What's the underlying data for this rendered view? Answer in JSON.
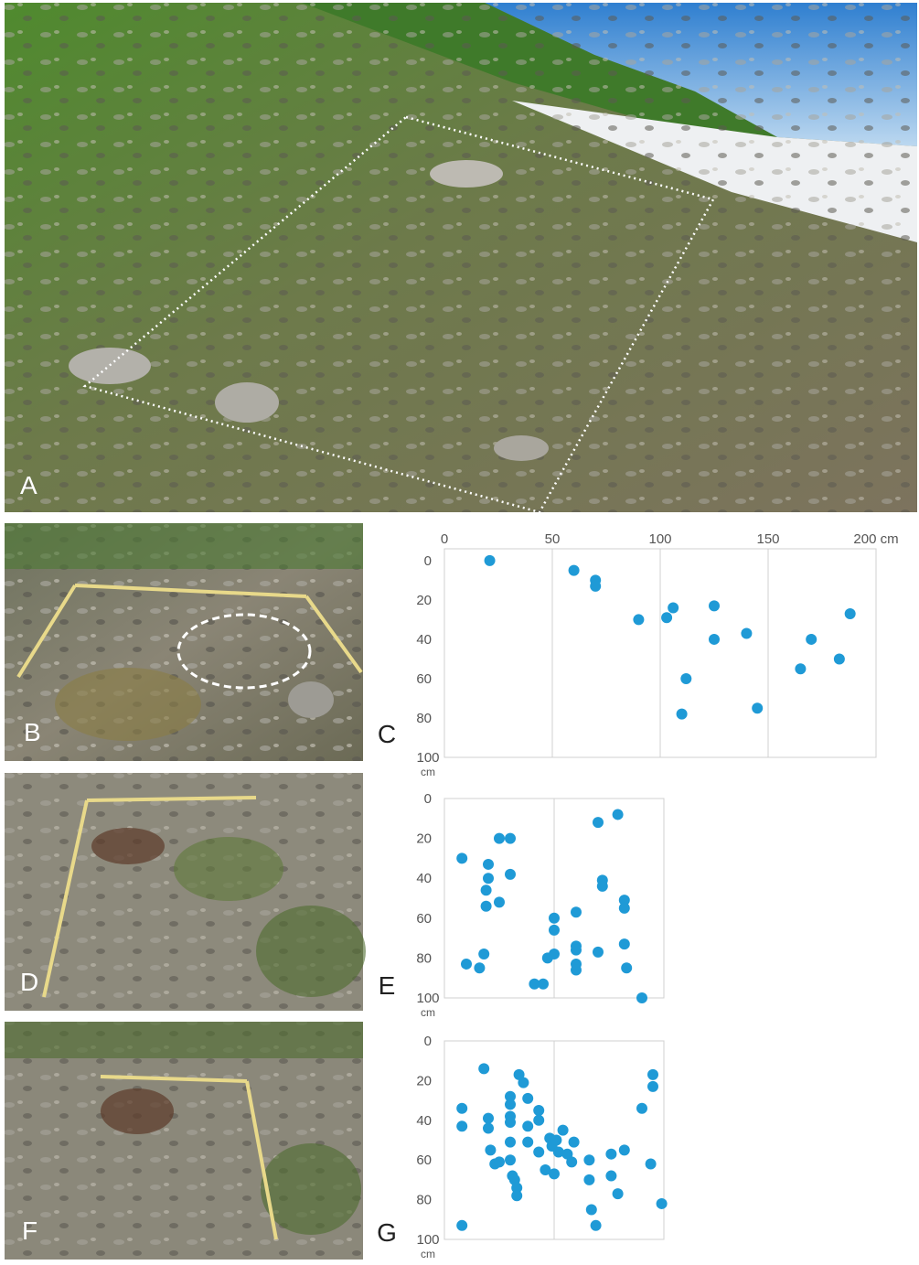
{
  "photo_labels": [
    "A",
    "B",
    "D",
    "F"
  ],
  "chart_data": [
    {
      "type": "scatter",
      "panel_label": "C",
      "color": "#1f9ad6",
      "x": [
        21,
        60,
        70,
        70,
        90,
        103,
        106,
        125,
        125,
        140,
        112,
        110,
        145,
        165,
        170,
        183,
        188
      ],
      "values": [
        0,
        5,
        10,
        13,
        30,
        29,
        24,
        23,
        40,
        37,
        60,
        78,
        75,
        55,
        40,
        50,
        27
      ],
      "xlim": [
        0,
        200
      ],
      "ylim": [
        -6,
        100
      ],
      "y_inverted": true,
      "xticks": [
        0,
        50,
        100,
        150,
        {
          "value": 200,
          "label": "200 cm"
        }
      ],
      "xgrid": [
        50,
        100,
        150
      ],
      "yticks": [
        0,
        20,
        40,
        60,
        80,
        {
          "value": 100,
          "label": "100 cm"
        }
      ]
    },
    {
      "type": "scatter",
      "panel_label": "E",
      "color": "#1f9ad6",
      "x": [
        8,
        10,
        16,
        18,
        20,
        20,
        19,
        19,
        25,
        30,
        30,
        25,
        41,
        45,
        47,
        50,
        50,
        50,
        60,
        60,
        60,
        60,
        60,
        70,
        79,
        72,
        72,
        70,
        82,
        82,
        82,
        83,
        90
      ],
      "values": [
        30,
        83,
        85,
        78,
        33,
        40,
        46,
        54,
        20,
        20,
        38,
        52,
        93,
        93,
        80,
        60,
        66,
        78,
        57,
        74,
        76,
        83,
        86,
        12,
        8,
        41,
        44,
        77,
        51,
        55,
        73,
        85,
        100
      ],
      "xlim": [
        0,
        100
      ],
      "ylim": [
        0,
        100
      ],
      "y_inverted": true,
      "xgrid": [
        50
      ],
      "yticks": [
        0,
        20,
        40,
        60,
        80,
        {
          "value": 100,
          "label": "100 cm"
        }
      ]
    },
    {
      "type": "scatter",
      "panel_label": "G",
      "color": "#1f9ad6",
      "x": [
        8,
        8,
        8,
        18,
        20,
        20,
        21,
        23,
        25,
        34,
        36,
        30,
        30,
        30,
        30,
        30,
        30,
        31,
        32,
        33,
        33,
        38,
        38,
        38,
        43,
        43,
        43,
        46,
        48,
        49,
        50,
        51,
        52,
        54,
        56,
        58,
        59,
        66,
        66,
        67,
        69,
        76,
        76,
        79,
        82,
        90,
        95,
        95,
        94,
        99
      ],
      "values": [
        93,
        34,
        43,
        14,
        39,
        44,
        55,
        62,
        61,
        17,
        21,
        28,
        32,
        38,
        41,
        51,
        60,
        68,
        70,
        74,
        78,
        29,
        43,
        51,
        35,
        40,
        56,
        65,
        49,
        53,
        67,
        50,
        56,
        45,
        57,
        61,
        51,
        60,
        70,
        85,
        93,
        57,
        68,
        77,
        55,
        34,
        17,
        23,
        62,
        82
      ],
      "xlim": [
        0,
        100
      ],
      "ylim": [
        0,
        100
      ],
      "y_inverted": true,
      "xgrid": [
        50
      ],
      "yticks": [
        0,
        20,
        40,
        60,
        80,
        {
          "value": 100,
          "label": "100 cm"
        }
      ]
    }
  ]
}
